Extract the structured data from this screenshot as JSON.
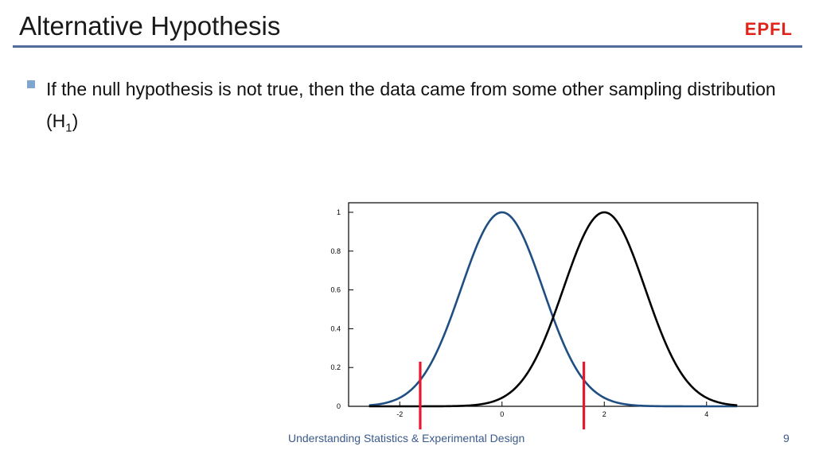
{
  "slide": {
    "title": "Alternative Hypothesis",
    "logo_text": "EPFL",
    "bullet": {
      "text_main": "If the null hypothesis is not true, then the data came from some other sampling distribution (H",
      "subscript": "1",
      "text_end": ")"
    },
    "footer": "Understanding Statistics & Experimental Design",
    "page_number": "9"
  },
  "colors": {
    "title_rule": "#4f6c9a",
    "bullet_marker": "#7ea6cf",
    "logo": "#e2231a",
    "h0_curve": "#1f4e82",
    "h1_curve": "#000000",
    "critical_lines": "#e8192c"
  },
  "chart_data": {
    "type": "line",
    "xlim": [
      -3,
      5
    ],
    "ylim": [
      0,
      1
    ],
    "x_ticks": [
      "-2",
      "0",
      "2",
      "4"
    ],
    "y_ticks": [
      "0",
      "0.2",
      "0.4",
      "0.6",
      "0.8",
      "1"
    ],
    "series": [
      {
        "mean": 0,
        "sd": 0.8,
        "peak": 1
      },
      {
        "mean": 2,
        "sd": 0.8,
        "peak": 1
      }
    ],
    "critical_values": [
      -1.6,
      1.6
    ]
  }
}
